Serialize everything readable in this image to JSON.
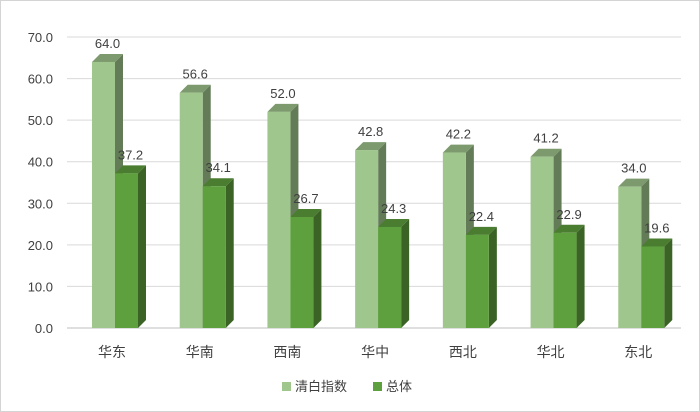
{
  "chart_data": {
    "type": "bar",
    "style": "3d-clustered-column",
    "categories": [
      "华东",
      "华南",
      "西南",
      "华中",
      "西北",
      "华北",
      "东北"
    ],
    "series": [
      {
        "name": "清白指数",
        "values": [
          64.0,
          56.6,
          52.0,
          42.8,
          42.2,
          41.2,
          34.0
        ],
        "color": "#9fc68c"
      },
      {
        "name": "总体",
        "values": [
          37.2,
          34.1,
          26.7,
          24.3,
          22.4,
          22.9,
          19.6
        ],
        "color": "#5fa03e"
      }
    ],
    "ylim": [
      0,
      70
    ],
    "yticks": [
      "0.0",
      "10.0",
      "20.0",
      "30.0",
      "40.0",
      "50.0",
      "60.0",
      "70.0"
    ],
    "grid": true,
    "legend_position": "bottom",
    "title": "",
    "xlabel": "",
    "ylabel": ""
  }
}
